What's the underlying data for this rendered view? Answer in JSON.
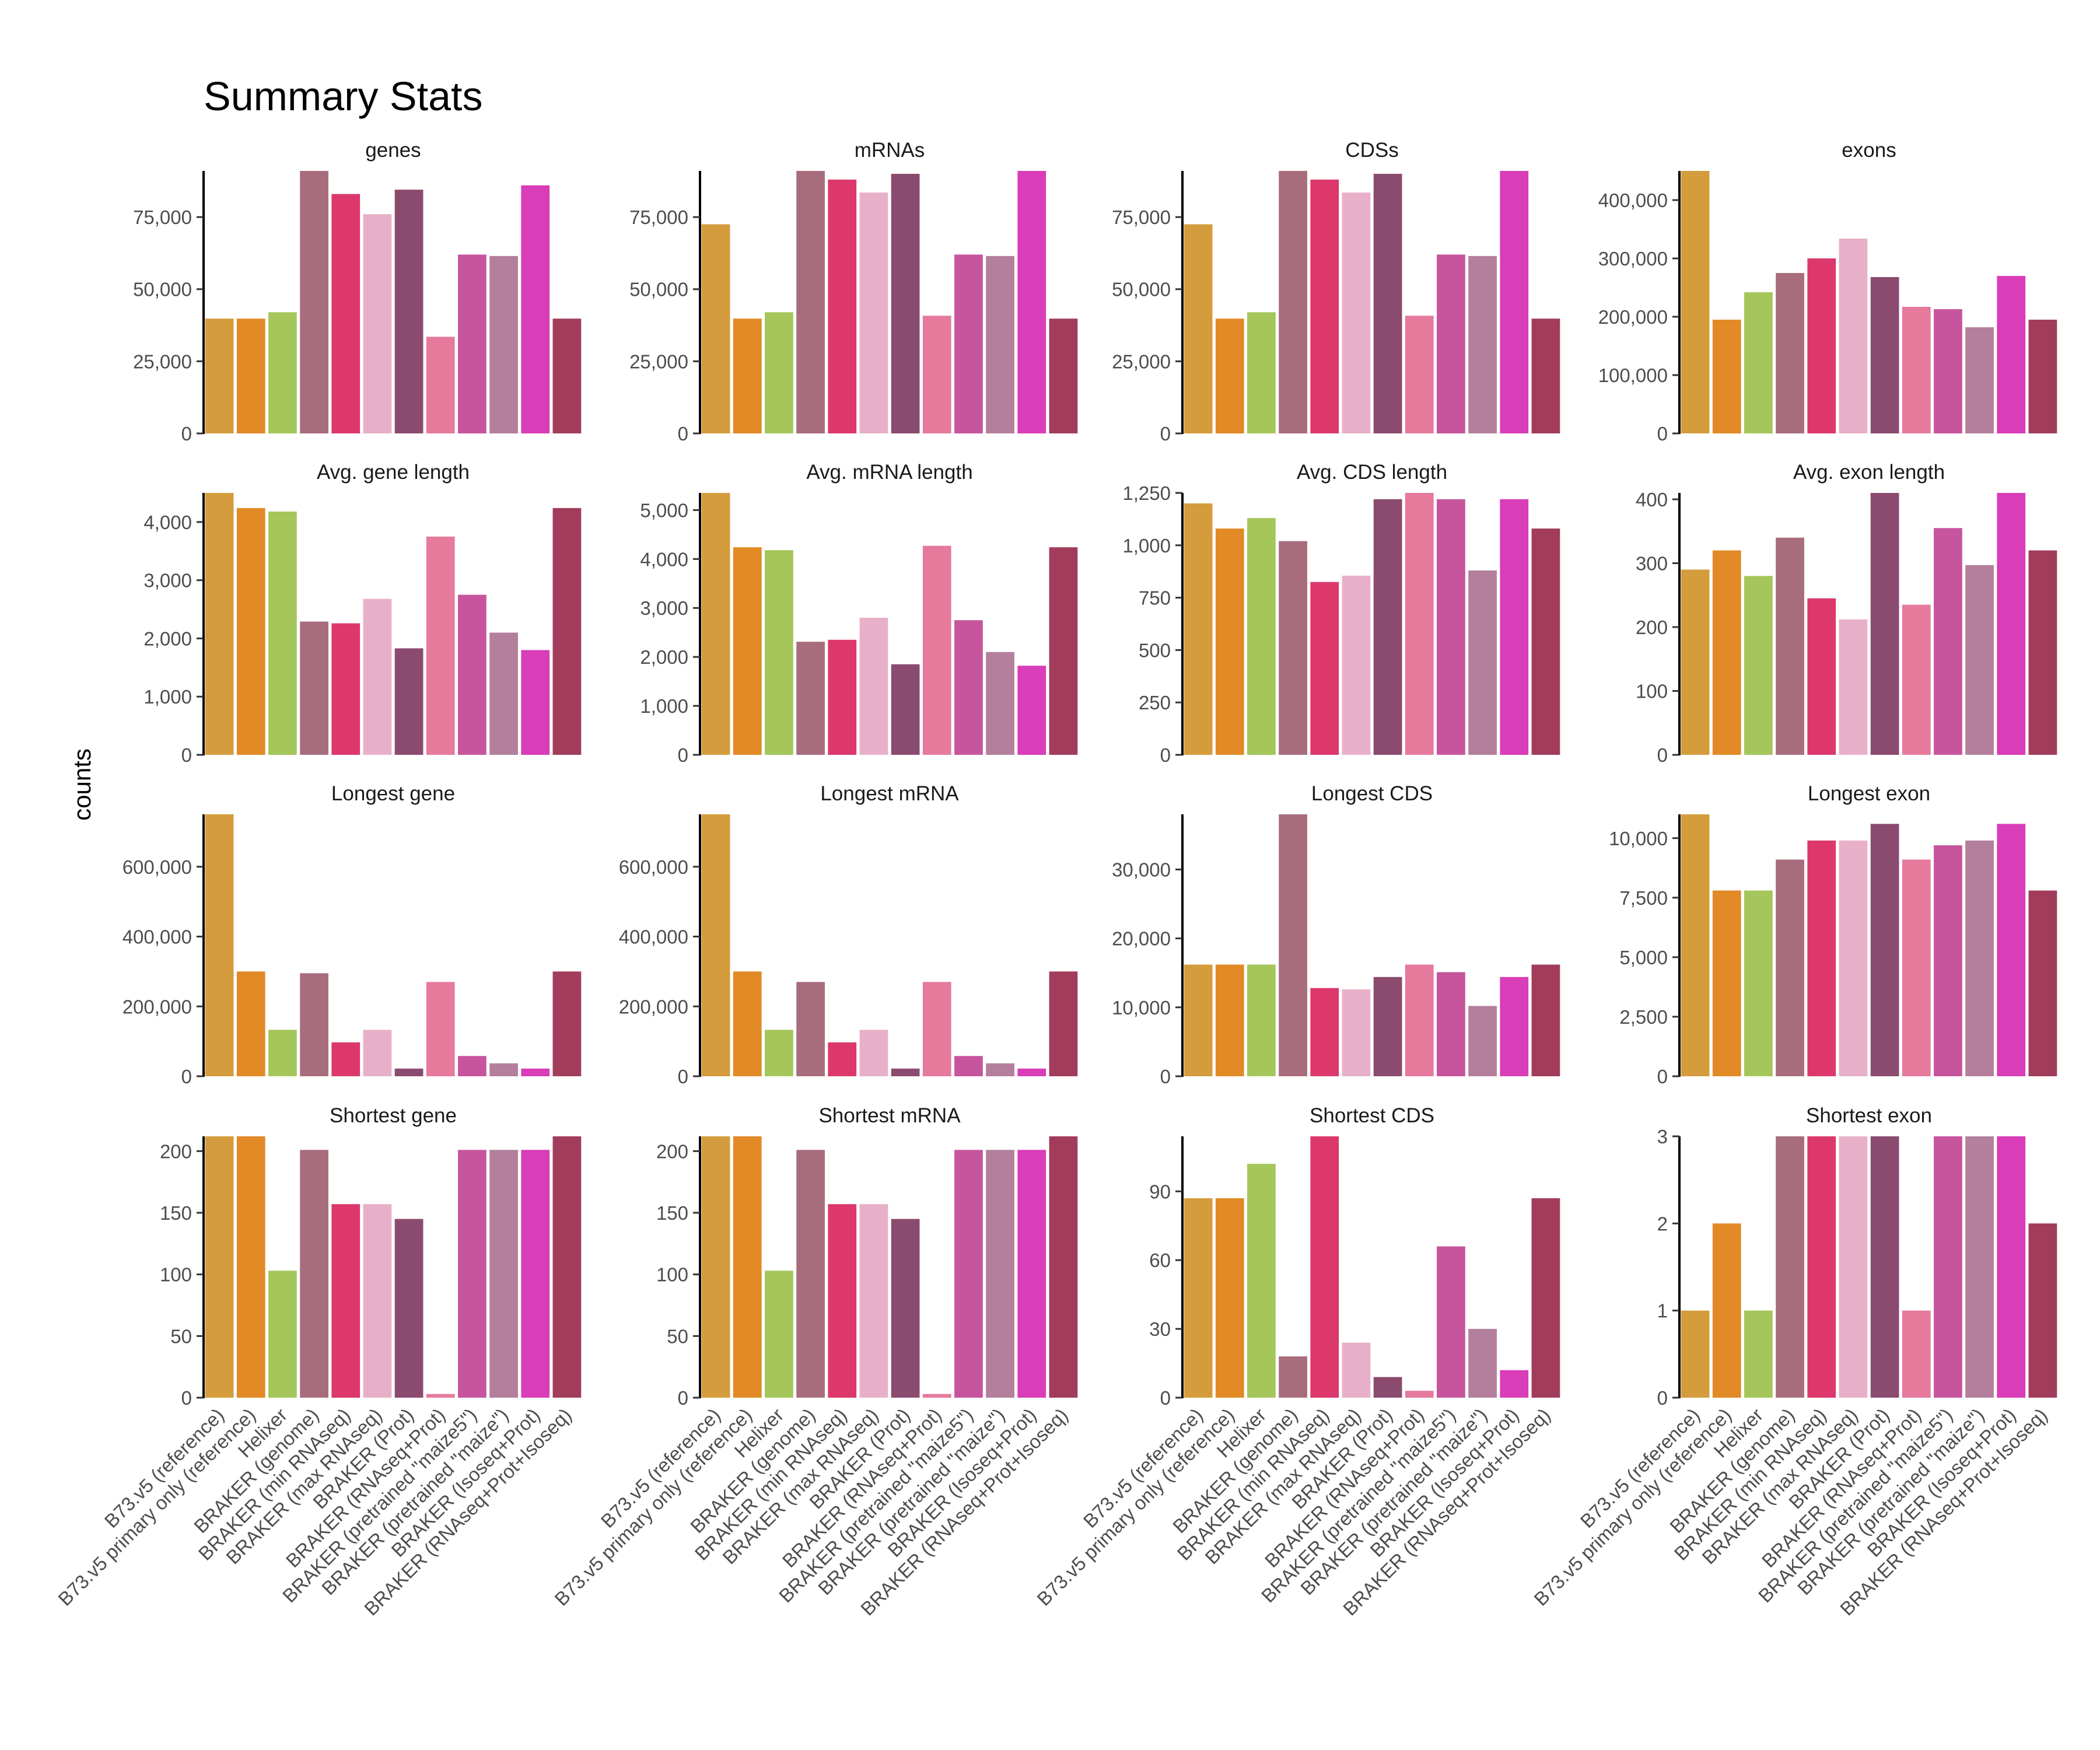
{
  "chart_data": {
    "type": "bar",
    "title": "Summary Stats",
    "ylabel": "counts",
    "xlabel": "",
    "grid": false,
    "legend": "none",
    "categories": [
      "B73.v5 (reference)",
      "B73.v5 primary only (reference)",
      "Helixer",
      "BRAKER (genome)",
      "BRAKER (min RNAseq)",
      "BRAKER (max RNAseq)",
      "BRAKER (Prot)",
      "BRAKER (RNAseq+Prot)",
      "BRAKER (pretrained \"maize5\")",
      "BRAKER (pretrained \"maize\")",
      "BRAKER (Isoseq+Prot)",
      "BRAKER (RNAseq+Prot+Isoseq)"
    ],
    "colors": [
      "#d49c3c",
      "#e28a26",
      "#a4c65a",
      "#a86d7c",
      "#dc386b",
      "#e8b0c8",
      "#8b4b6e",
      "#e57a9c",
      "#c6559e",
      "#b37f9c",
      "#d93db7",
      "#a13d5b"
    ],
    "panels": [
      {
        "title": "genes",
        "ylim": [
          0,
          91000
        ],
        "ticks": [
          0,
          25000,
          50000,
          75000
        ],
        "tick_labels": [
          "0",
          "25,000",
          "50,000",
          "75,000"
        ],
        "values": [
          39800,
          39800,
          42000,
          91000,
          83000,
          76000,
          84500,
          33500,
          62000,
          61500,
          86000,
          39800
        ]
      },
      {
        "title": "mRNAs",
        "ylim": [
          0,
          91000
        ],
        "ticks": [
          0,
          25000,
          50000,
          75000
        ],
        "tick_labels": [
          "0",
          "25,000",
          "50,000",
          "75,000"
        ],
        "values": [
          72500,
          39800,
          42000,
          91000,
          88000,
          83500,
          90000,
          40800,
          62000,
          61500,
          91000,
          39800
        ]
      },
      {
        "title": "CDSs",
        "ylim": [
          0,
          91000
        ],
        "ticks": [
          0,
          25000,
          50000,
          75000
        ],
        "tick_labels": [
          "0",
          "25,000",
          "50,000",
          "75,000"
        ],
        "values": [
          72500,
          39800,
          42000,
          91000,
          88000,
          83500,
          90000,
          40800,
          62000,
          61500,
          91000,
          39800
        ]
      },
      {
        "title": "exons",
        "ylim": [
          0,
          450000
        ],
        "ticks": [
          0,
          100000,
          200000,
          300000,
          400000
        ],
        "tick_labels": [
          "0",
          "100,000",
          "200,000",
          "300,000",
          "400,000"
        ],
        "values": [
          450000,
          195000,
          242000,
          275000,
          300000,
          334000,
          268000,
          217000,
          213000,
          182000,
          270000,
          195000
        ]
      },
      {
        "title": "Avg. gene length",
        "ylim": [
          0,
          4500
        ],
        "ticks": [
          0,
          1000,
          2000,
          3000,
          4000
        ],
        "tick_labels": [
          "0",
          "1,000",
          "2,000",
          "3,000",
          "4,000"
        ],
        "values": [
          4500,
          4240,
          4180,
          2290,
          2260,
          2680,
          1830,
          3750,
          2750,
          2100,
          1800,
          4240
        ]
      },
      {
        "title": "Avg. mRNA length",
        "ylim": [
          0,
          5350
        ],
        "ticks": [
          0,
          1000,
          2000,
          3000,
          4000,
          5000
        ],
        "tick_labels": [
          "0",
          "1,000",
          "2,000",
          "3,000",
          "4,000",
          "5,000"
        ],
        "values": [
          5350,
          4240,
          4180,
          2310,
          2350,
          2800,
          1850,
          4270,
          2750,
          2100,
          1820,
          4240
        ]
      },
      {
        "title": "Avg. CDS length",
        "ylim": [
          0,
          1250
        ],
        "ticks": [
          0,
          250,
          500,
          750,
          1000,
          1250
        ],
        "tick_labels": [
          "0",
          "250",
          "500",
          "750",
          "1,000",
          "1,250"
        ],
        "values": [
          1200,
          1080,
          1130,
          1020,
          825,
          855,
          1220,
          1250,
          1220,
          880,
          1220,
          1080
        ]
      },
      {
        "title": "Avg. exon length",
        "ylim": [
          0,
          410
        ],
        "ticks": [
          0,
          100,
          200,
          300,
          400
        ],
        "tick_labels": [
          "0",
          "100",
          "200",
          "300",
          "400"
        ],
        "values": [
          290,
          320,
          280,
          340,
          245,
          212,
          410,
          235,
          355,
          297,
          410,
          320
        ]
      },
      {
        "title": "Longest gene",
        "ylim": [
          0,
          750000
        ],
        "ticks": [
          0,
          200000,
          400000,
          600000
        ],
        "tick_labels": [
          "0",
          "200,000",
          "400,000",
          "600,000"
        ],
        "values": [
          750000,
          300000,
          133000,
          295000,
          97000,
          133000,
          22000,
          270000,
          58000,
          37000,
          22000,
          300000
        ]
      },
      {
        "title": "Longest mRNA",
        "ylim": [
          0,
          750000
        ],
        "ticks": [
          0,
          200000,
          400000,
          600000
        ],
        "tick_labels": [
          "0",
          "200,000",
          "400,000",
          "600,000"
        ],
        "values": [
          750000,
          300000,
          133000,
          270000,
          97000,
          133000,
          22000,
          270000,
          58000,
          37000,
          22000,
          300000
        ]
      },
      {
        "title": "Longest CDS",
        "ylim": [
          0,
          38000
        ],
        "ticks": [
          0,
          10000,
          20000,
          30000
        ],
        "tick_labels": [
          "0",
          "10,000",
          "20,000",
          "30,000"
        ],
        "values": [
          16200,
          16200,
          16200,
          38000,
          12800,
          12600,
          14400,
          16200,
          15100,
          10200,
          14400,
          16200
        ]
      },
      {
        "title": "Longest exon",
        "ylim": [
          0,
          11000
        ],
        "ticks": [
          0,
          2500,
          5000,
          7500,
          10000
        ],
        "tick_labels": [
          "0",
          "2,500",
          "5,000",
          "7,500",
          "10,000"
        ],
        "values": [
          11000,
          7800,
          7800,
          9100,
          9900,
          9900,
          10600,
          9100,
          9700,
          9900,
          10600,
          7800
        ]
      },
      {
        "title": "Shortest gene",
        "ylim": [
          0,
          212
        ],
        "ticks": [
          0,
          50,
          100,
          150,
          200
        ],
        "tick_labels": [
          "0",
          "50",
          "100",
          "150",
          "200"
        ],
        "values": [
          212,
          212,
          103,
          201,
          157,
          157,
          145,
          3,
          201,
          201,
          201,
          212
        ]
      },
      {
        "title": "Shortest mRNA",
        "ylim": [
          0,
          212
        ],
        "ticks": [
          0,
          50,
          100,
          150,
          200
        ],
        "tick_labels": [
          "0",
          "50",
          "100",
          "150",
          "200"
        ],
        "values": [
          212,
          212,
          103,
          201,
          157,
          157,
          145,
          3,
          201,
          201,
          201,
          212
        ]
      },
      {
        "title": "Shortest CDS",
        "ylim": [
          0,
          114
        ],
        "ticks": [
          0,
          30,
          60,
          90
        ],
        "tick_labels": [
          "0",
          "30",
          "60",
          "90"
        ],
        "values": [
          87,
          87,
          102,
          18,
          114,
          24,
          9,
          3,
          66,
          30,
          12,
          87
        ]
      },
      {
        "title": "Shortest exon",
        "ylim": [
          0,
          3
        ],
        "ticks": [
          0,
          1,
          2,
          3
        ],
        "tick_labels": [
          "0",
          "1",
          "2",
          "3"
        ],
        "values": [
          1,
          2,
          1,
          3,
          3,
          3,
          3,
          1,
          3,
          3,
          3,
          2
        ]
      }
    ]
  }
}
